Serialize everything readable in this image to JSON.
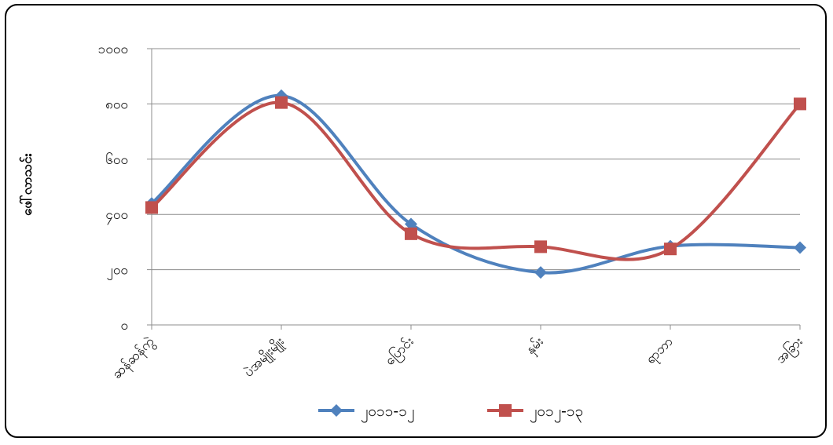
{
  "chart_data": {
    "type": "line",
    "title": "",
    "xlabel": "",
    "ylabel": "ဖေါ်လာသင်း",
    "categories": [
      "ဆန်ဆန်ကွဲ",
      "ပဲအမျိုးမျိုး",
      "ပြောင်း",
      "နှမ်း",
      "ရာဘာ",
      "အခြား"
    ],
    "yticks": [
      "၀",
      "၂၀၀",
      "၄၀၀",
      "၆၀၀",
      "၈၀၀",
      "၁၀၀၀"
    ],
    "ylim": [
      0,
      1000
    ],
    "grid": true,
    "smooth": true,
    "legend_position": "bottom",
    "series": [
      {
        "name": "၂၀၁၁-၁၂",
        "color": "#4f81bd",
        "marker": "diamond",
        "values": [
          440,
          830,
          365,
          190,
          285,
          280
        ]
      },
      {
        "name": "၂၀၁၂-၁၃",
        "color": "#c0504d",
        "marker": "square",
        "values": [
          425,
          805,
          330,
          283,
          275,
          800
        ]
      }
    ]
  }
}
